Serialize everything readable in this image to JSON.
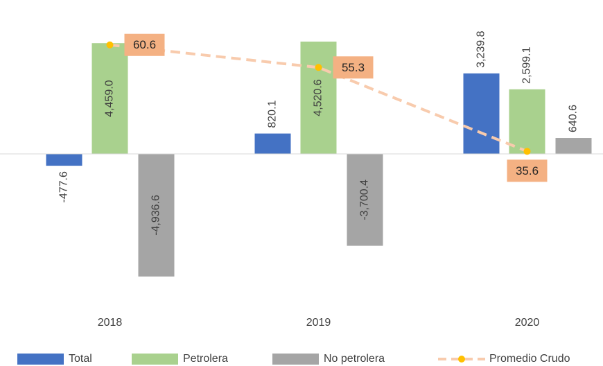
{
  "chart_data": {
    "type": "bar",
    "categories": [
      "2018",
      "2019",
      "2020"
    ],
    "ylim": [
      -6000,
      6000
    ],
    "y2lim": [
      0,
      70
    ],
    "legend": "bottom",
    "series": [
      {
        "name": "Total",
        "color": "#4472c4",
        "values": [
          -477.6,
          820.1,
          3239.8
        ],
        "value_labels": [
          "-477.6",
          "820.1",
          "3,239.8"
        ]
      },
      {
        "name": "Petrolera",
        "color": "#a9d18e",
        "values": [
          4459.0,
          4520.6,
          2599.1
        ],
        "value_labels": [
          "4,459.0",
          "4,520.6",
          "2,599.1"
        ]
      },
      {
        "name": "No petrolera",
        "color": "#a5a5a5",
        "values": [
          -4936.6,
          -3700.4,
          640.6
        ],
        "value_labels": [
          "-4,936.6",
          "-3,700.4",
          "640.6"
        ]
      },
      {
        "name": "Promedio Crudo",
        "type": "line",
        "axis": "y2",
        "color": "#f8cbad",
        "marker_color": "#ffc000",
        "label_box": "#f4b183",
        "values": [
          60.6,
          55.3,
          35.6
        ]
      }
    ]
  }
}
